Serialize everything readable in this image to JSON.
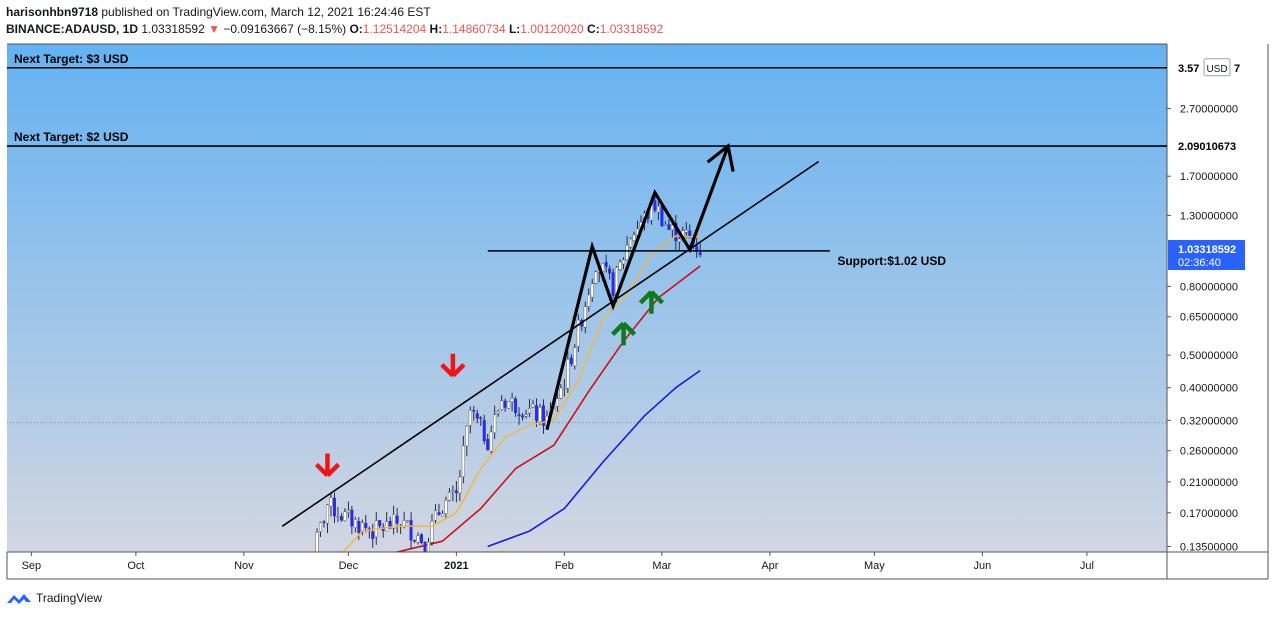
{
  "header": {
    "author": "harisonhbn9718",
    "published_text": "published on TradingView.com, March 12, 2021 16:24:46 EST",
    "symbol": "BINANCE:ADAUSD, 1D",
    "last": "1.03318592",
    "change": "−0.09163667 (−8.15%)",
    "o_label": "O:",
    "o": "1.12514204",
    "h_label": "H:",
    "h": "1.14860734",
    "l_label": "L:",
    "l": "1.00120020",
    "c_label": "C:",
    "c": "1.03318592"
  },
  "brand": {
    "name": "TradingView"
  },
  "colors": {
    "up_candle": "#ffffff",
    "down_candle": "#2a2ae0",
    "ema_fast": "#f5b642",
    "ema_mid": "#cc1010",
    "ema_slow": "#1a1ad9",
    "accent": "#2962ff",
    "bg_top": "#64b2f2",
    "bg_bottom": "#d2d6e2"
  },
  "chart_data": {
    "type": "candlestick",
    "scale": "log",
    "ylim": [
      0.13,
      4.2
    ],
    "x_range": [
      "2020-08-25",
      "2021-07-24"
    ],
    "x_ticks": [
      {
        "label": "Sep",
        "date": "2020-09-01"
      },
      {
        "label": "Oct",
        "date": "2020-10-01"
      },
      {
        "label": "Nov",
        "date": "2020-11-01"
      },
      {
        "label": "Dec",
        "date": "2020-12-01"
      },
      {
        "label": "2021",
        "date": "2021-01-01"
      },
      {
        "label": "Feb",
        "date": "2021-02-01"
      },
      {
        "label": "Mar",
        "date": "2021-03-01"
      },
      {
        "label": "Apr",
        "date": "2021-04-01"
      },
      {
        "label": "May",
        "date": "2021-05-01"
      },
      {
        "label": "Jun",
        "date": "2021-06-01"
      },
      {
        "label": "Jul",
        "date": "2021-07-01"
      }
    ],
    "y_ticks": [
      "2.70000000",
      "1.70000000",
      "1.30000000",
      "0.80000000",
      "0.65000000",
      "0.50000000",
      "0.40000000",
      "0.32000000",
      "0.26000000",
      "0.21000000",
      "0.17000000",
      "0.13500000"
    ],
    "y_tick_values": [
      2.7,
      1.7,
      1.3,
      0.8,
      0.65,
      0.5,
      0.4,
      0.32,
      0.26,
      0.21,
      0.17,
      0.135
    ],
    "price_label": {
      "value": 1.03318592,
      "text": "1.03318592",
      "countdown": "02:36:40"
    },
    "currency_badge": "USD",
    "target_labels": [
      {
        "value": 3.57,
        "text": "3.57"
      },
      {
        "value": 2.09010673,
        "text": "2.09010673"
      }
    ],
    "horizontal_lines": [
      {
        "value": 3.57,
        "label": "Next Target: $3 USD"
      },
      {
        "value": 2.09,
        "label": "Next Target: $2 USD"
      },
      {
        "value": 1.02,
        "label": "Support:$1.02 USD",
        "from": "2021-01-10",
        "to": "2021-04-01"
      }
    ],
    "trend_line": {
      "from": {
        "date": "2020-11-12",
        "value": 0.155
      },
      "to": {
        "date": "2021-04-15",
        "value": 1.88
      }
    },
    "path_annotation": [
      {
        "date": "2021-01-27",
        "value": 0.3
      },
      {
        "date": "2021-02-09",
        "value": 1.05
      },
      {
        "date": "2021-02-15",
        "value": 0.7
      },
      {
        "date": "2021-02-27",
        "value": 1.52
      },
      {
        "date": "2021-03-09",
        "value": 1.03
      },
      {
        "date": "2021-03-20",
        "value": 2.09
      }
    ],
    "arrows": [
      {
        "type": "down",
        "color": "red",
        "date": "2020-11-25",
        "value": 0.235
      },
      {
        "type": "down",
        "color": "red",
        "date": "2020-12-31",
        "value": 0.465
      },
      {
        "type": "up",
        "color": "green",
        "date": "2021-02-18",
        "value": 0.58
      },
      {
        "type": "up",
        "color": "green",
        "date": "2021-02-26",
        "value": 0.72
      }
    ],
    "candle_anchors": [
      {
        "date": "2020-11-20",
        "value": 0.12
      },
      {
        "date": "2020-11-25",
        "value": 0.18
      },
      {
        "date": "2020-11-30",
        "value": 0.165
      },
      {
        "date": "2020-12-08",
        "value": 0.15
      },
      {
        "date": "2020-12-16",
        "value": 0.16
      },
      {
        "date": "2020-12-23",
        "value": 0.14
      },
      {
        "date": "2020-12-28",
        "value": 0.18
      },
      {
        "date": "2021-01-01",
        "value": 0.19
      },
      {
        "date": "2021-01-05",
        "value": 0.34
      },
      {
        "date": "2021-01-10",
        "value": 0.28
      },
      {
        "date": "2021-01-14",
        "value": 0.37
      },
      {
        "date": "2021-01-20",
        "value": 0.35
      },
      {
        "date": "2021-01-27",
        "value": 0.32
      },
      {
        "date": "2021-02-01",
        "value": 0.42
      },
      {
        "date": "2021-02-06",
        "value": 0.65
      },
      {
        "date": "2021-02-10",
        "value": 0.95
      },
      {
        "date": "2021-02-15",
        "value": 0.8
      },
      {
        "date": "2021-02-20",
        "value": 1.13
      },
      {
        "date": "2021-02-27",
        "value": 1.4
      },
      {
        "date": "2021-03-03",
        "value": 1.18
      },
      {
        "date": "2021-03-08",
        "value": 1.13
      },
      {
        "date": "2021-03-12",
        "value": 1.03
      }
    ],
    "ema_fast": [
      {
        "date": "2020-11-28",
        "value": 0.125
      },
      {
        "date": "2020-12-05",
        "value": 0.15
      },
      {
        "date": "2020-12-15",
        "value": 0.155
      },
      {
        "date": "2020-12-25",
        "value": 0.155
      },
      {
        "date": "2021-01-01",
        "value": 0.17
      },
      {
        "date": "2021-01-08",
        "value": 0.23
      },
      {
        "date": "2021-01-15",
        "value": 0.285
      },
      {
        "date": "2021-01-22",
        "value": 0.31
      },
      {
        "date": "2021-01-29",
        "value": 0.32
      },
      {
        "date": "2021-02-05",
        "value": 0.42
      },
      {
        "date": "2021-02-12",
        "value": 0.64
      },
      {
        "date": "2021-02-19",
        "value": 0.76
      },
      {
        "date": "2021-02-26",
        "value": 1.0
      },
      {
        "date": "2021-03-05",
        "value": 1.13
      },
      {
        "date": "2021-03-12",
        "value": 1.12
      }
    ],
    "ema_mid": [
      {
        "date": "2020-12-03",
        "value": 0.125
      },
      {
        "date": "2020-12-15",
        "value": 0.13
      },
      {
        "date": "2020-12-28",
        "value": 0.14
      },
      {
        "date": "2021-01-08",
        "value": 0.175
      },
      {
        "date": "2021-01-18",
        "value": 0.23
      },
      {
        "date": "2021-01-29",
        "value": 0.27
      },
      {
        "date": "2021-02-08",
        "value": 0.39
      },
      {
        "date": "2021-02-18",
        "value": 0.55
      },
      {
        "date": "2021-02-28",
        "value": 0.74
      },
      {
        "date": "2021-03-12",
        "value": 0.92
      }
    ],
    "ema_slow": [
      {
        "date": "2021-01-10",
        "value": 0.135
      },
      {
        "date": "2021-01-22",
        "value": 0.15
      },
      {
        "date": "2021-02-01",
        "value": 0.175
      },
      {
        "date": "2021-02-12",
        "value": 0.24
      },
      {
        "date": "2021-02-24",
        "value": 0.33
      },
      {
        "date": "2021-03-05",
        "value": 0.4
      },
      {
        "date": "2021-03-12",
        "value": 0.45
      }
    ]
  }
}
